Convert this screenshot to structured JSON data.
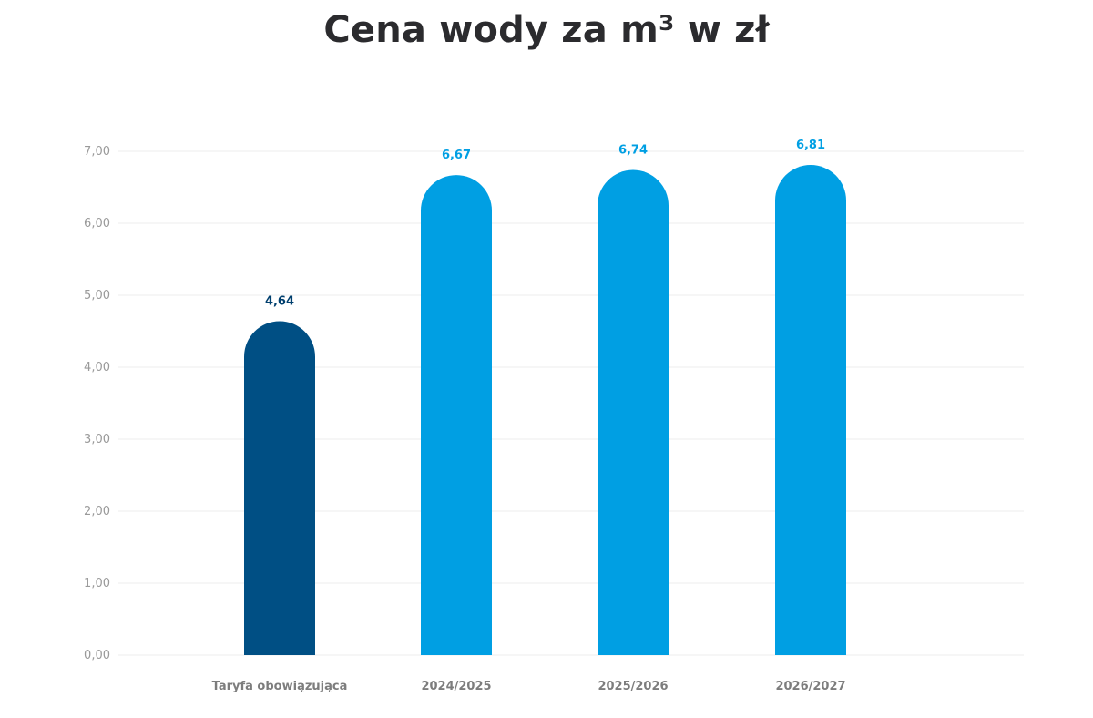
{
  "chart_data": {
    "type": "bar",
    "title": "Cena wody za m³ w zł",
    "categories": [
      "Taryfa obowiązująca",
      "2024/2025",
      "2025/2026",
      "2026/2027"
    ],
    "values": [
      4.64,
      6.67,
      6.74,
      6.81
    ],
    "value_labels": [
      "4,64",
      "6,67",
      "6,74",
      "6,81"
    ],
    "yticks": [
      "0,00",
      "1,00",
      "2,00",
      "3,00",
      "4,00",
      "5,00",
      "6,00",
      "7,00"
    ],
    "ylim": [
      0,
      7
    ],
    "grid": true,
    "bar_colors": [
      "#004f84",
      "#009fe3",
      "#009fe3",
      "#009fe3"
    ],
    "label_colors": [
      "#003f6e",
      "#009fe3",
      "#009fe3",
      "#009fe3"
    ]
  }
}
